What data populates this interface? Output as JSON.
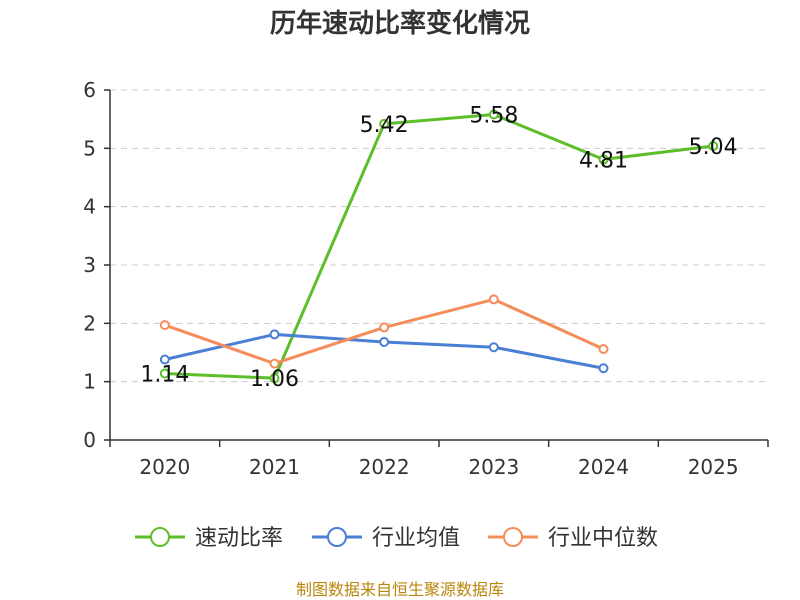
{
  "chart_data": {
    "type": "line",
    "title": "历年速动比率变化情况",
    "categories": [
      "2020",
      "2021",
      "2022",
      "2023",
      "2024",
      "2025"
    ],
    "ylim": [
      0,
      6
    ],
    "yticks": [
      0,
      1,
      2,
      3,
      4,
      5,
      6
    ],
    "grid": true,
    "legend_position": "bottom",
    "series": [
      {
        "name": "速动比率",
        "color": "#5cbf2a",
        "values": [
          1.14,
          1.06,
          5.42,
          5.58,
          4.81,
          5.04
        ],
        "labels": [
          "1.14",
          "1.06",
          "5.42",
          "5.58",
          "4.81",
          "5.04"
        ]
      },
      {
        "name": "行业均值",
        "color": "#4a7fd4",
        "values": [
          1.38,
          1.81,
          1.68,
          1.59,
          1.23,
          null
        ]
      },
      {
        "name": "行业中位数",
        "color": "#f58d5a",
        "values": [
          1.97,
          1.31,
          1.93,
          2.41,
          1.56,
          null
        ]
      }
    ],
    "source": "制图数据来自恒生聚源数据库"
  }
}
